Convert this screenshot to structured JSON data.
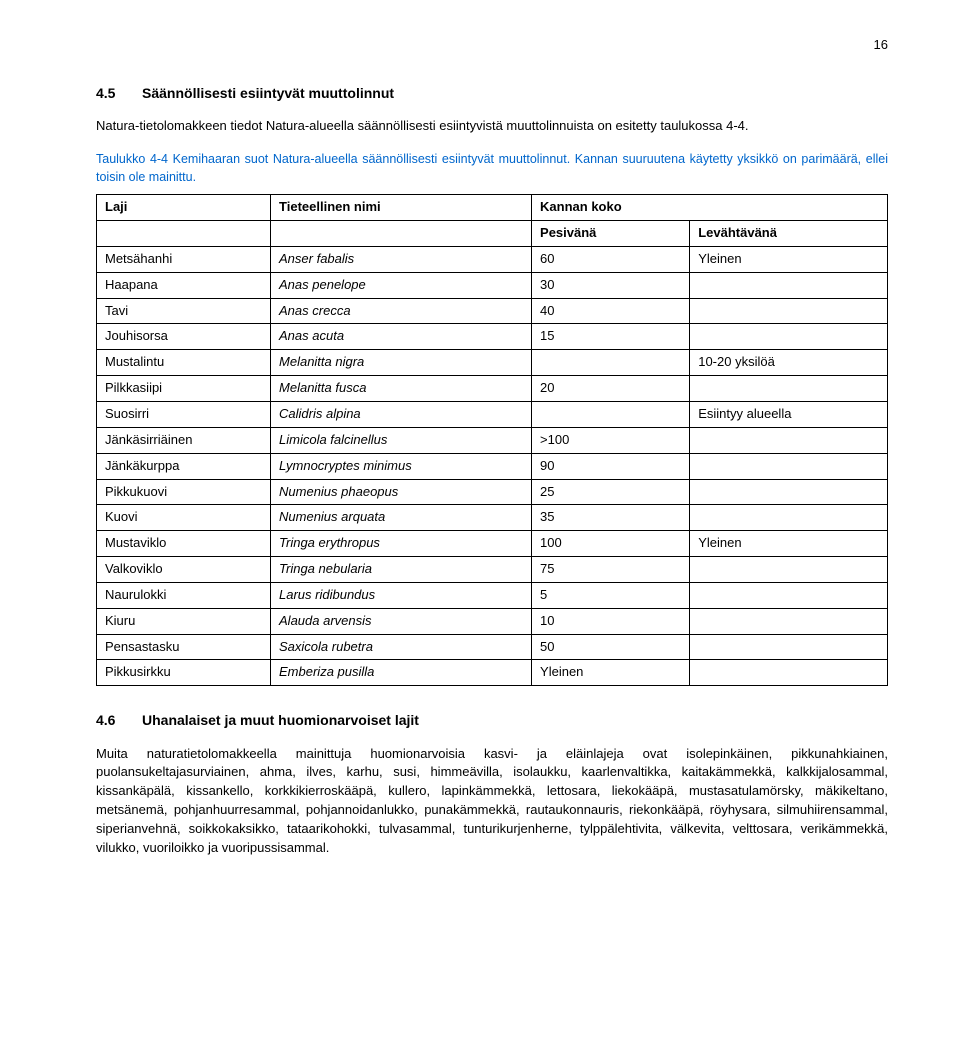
{
  "pageNumber": "16",
  "section45": {
    "number": "4.5",
    "title": "Säännöllisesti esiintyvät muuttolinnut",
    "paragraph": "Natura-tietolomakkeen tiedot Natura-alueella säännöllisesti esiintyvistä muuttolinnuista on esitetty taulukossa 4-4."
  },
  "tableCaption": "Taulukko 4-4 Kemihaaran suot Natura-alueella säännöllisesti esiintyvät muuttolinnut. Kannan suuruutena käytetty yksikkö on parimäärä, ellei toisin ole mainittu.",
  "table": {
    "headers": {
      "laji": "Laji",
      "tieteellinen": "Tieteellinen nimi",
      "kannan": "Kannan koko",
      "pesivana": "Pesivänä",
      "levahtavana": "Levähtävänä"
    },
    "rows": [
      {
        "laji": "Metsähanhi",
        "tn": "Anser fabalis",
        "p": "60",
        "l": "Yleinen"
      },
      {
        "laji": "Haapana",
        "tn": "Anas penelope",
        "p": "30",
        "l": ""
      },
      {
        "laji": "Tavi",
        "tn": "Anas crecca",
        "p": "40",
        "l": ""
      },
      {
        "laji": "Jouhisorsa",
        "tn": "Anas acuta",
        "p": "15",
        "l": ""
      },
      {
        "laji": "Mustalintu",
        "tn": "Melanitta nigra",
        "p": "",
        "l": "10-20 yksilöä"
      },
      {
        "laji": "Pilkkasiipi",
        "tn": "Melanitta fusca",
        "p": "20",
        "l": ""
      },
      {
        "laji": "Suosirri",
        "tn": "Calidris alpina",
        "p": "",
        "l": "Esiintyy alueella"
      },
      {
        "laji": "Jänkäsirriäinen",
        "tn": "Limicola falcinellus",
        "p": ">100",
        "l": ""
      },
      {
        "laji": "Jänkäkurppa",
        "tn": "Lymnocryptes minimus",
        "p": "90",
        "l": ""
      },
      {
        "laji": "Pikkukuovi",
        "tn": "Numenius phaeopus",
        "p": "25",
        "l": ""
      },
      {
        "laji": "Kuovi",
        "tn": "Numenius arquata",
        "p": "35",
        "l": ""
      },
      {
        "laji": "Mustaviklo",
        "tn": "Tringa erythropus",
        "p": "100",
        "l": "Yleinen"
      },
      {
        "laji": "Valkoviklo",
        "tn": "Tringa nebularia",
        "p": "75",
        "l": ""
      },
      {
        "laji": "Naurulokki",
        "tn": "Larus ridibundus",
        "p": "5",
        "l": ""
      },
      {
        "laji": "Kiuru",
        "tn": "Alauda arvensis",
        "p": "10",
        "l": ""
      },
      {
        "laji": "Pensastasku",
        "tn": "Saxicola rubetra",
        "p": "50",
        "l": ""
      },
      {
        "laji": "Pikkusirkku",
        "tn": "Emberiza pusilla",
        "p": "Yleinen",
        "l": ""
      }
    ]
  },
  "section46": {
    "number": "4.6",
    "title": "Uhanalaiset ja muut huomionarvoiset lajit",
    "paragraph": "Muita naturatietolomakkeella mainittuja huomionarvoisia kasvi- ja eläinlajeja ovat isolepinkäinen, pikkunahkiainen, puolansukeltajasurviainen, ahma, ilves, karhu, susi, himmeävilla, isolaukku, kaarlenvaltikka, kaitakämmekkä, kalkkijalosammal, kissankäpälä, kissankello, korkkikierroskääpä, kullero, lapinkämmekkä, lettosara, liekokääpä, mustasatulamörsky, mäkikeltano, metsänemä, pohjanhuurresammal, pohjannoidanlukko, punakämmekkä, rautaukonnauris, riekonkääpä, röyhysara, silmuhiirensammal, siperianvehnä, soikkokaksikko, tataarikohokki, tulvasammal, tunturikurjenherne, tylppälehtivita, välkevita, velttosara, verikämmekkä, vilukko, vuoriloikko ja vuoripussisammal."
  }
}
